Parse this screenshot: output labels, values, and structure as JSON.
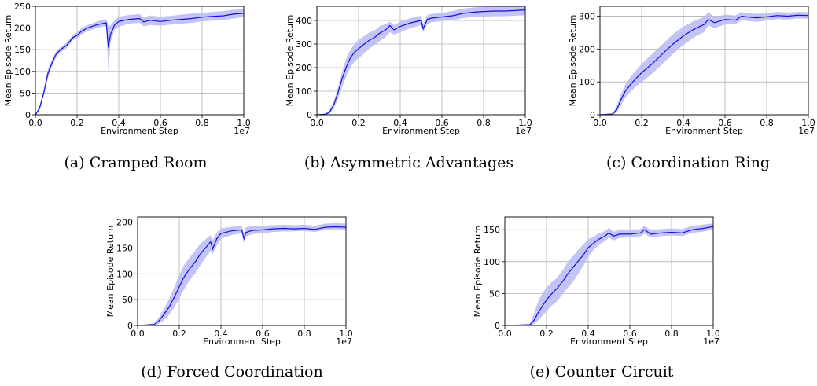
{
  "figure": {
    "captions": [
      "(a) Cramped Room",
      "(b) Asymmetric Advantages",
      "(c) Coordination Ring",
      "(d) Forced Coordination",
      "(e) Counter Circuit"
    ]
  },
  "colors": {
    "line": "#1010e0",
    "band": "#b8b8f5"
  },
  "chart_data": [
    {
      "type": "line",
      "xlabel": "Environment Step",
      "ylabel": "Mean Episode Return",
      "x_offset_label": "1e7",
      "xlim": [
        0,
        1.0
      ],
      "ylim": [
        0,
        250
      ],
      "xticks": [
        0.0,
        0.2,
        0.4,
        0.6,
        0.8,
        1.0
      ],
      "xtick_labels": [
        "0.0",
        "0.2",
        "0.4",
        "0.6",
        "0.8",
        "1.0"
      ],
      "yticks": [
        0,
        50,
        100,
        150,
        200,
        250
      ],
      "ytick_labels": [
        "0",
        "50",
        "100",
        "150",
        "200",
        "250"
      ],
      "series": [
        {
          "x": [
            0,
            0.02,
            0.04,
            0.06,
            0.08,
            0.1,
            0.12,
            0.15,
            0.18,
            0.2,
            0.22,
            0.25,
            0.28,
            0.3,
            0.32,
            0.34,
            0.35,
            0.36,
            0.38,
            0.4,
            0.45,
            0.5,
            0.52,
            0.55,
            0.6,
            0.65,
            0.7,
            0.75,
            0.8,
            0.85,
            0.9,
            0.95,
            1.0
          ],
          "y": [
            0,
            15,
            50,
            95,
            120,
            140,
            150,
            160,
            178,
            183,
            192,
            200,
            205,
            208,
            210,
            212,
            155,
            185,
            207,
            215,
            220,
            222,
            214,
            218,
            215,
            218,
            220,
            222,
            225,
            227,
            228,
            232,
            234
          ],
          "lower": [
            0,
            10,
            42,
            85,
            112,
            133,
            144,
            154,
            172,
            176,
            185,
            193,
            198,
            200,
            203,
            204,
            100,
            165,
            196,
            203,
            210,
            212,
            204,
            207,
            205,
            208,
            210,
            212,
            215,
            217,
            218,
            222,
            225
          ],
          "upper": [
            0,
            20,
            58,
            105,
            128,
            147,
            156,
            166,
            184,
            190,
            199,
            207,
            212,
            216,
            218,
            220,
            205,
            205,
            218,
            226,
            230,
            232,
            224,
            229,
            226,
            228,
            231,
            233,
            235,
            237,
            239,
            242,
            243
          ]
        }
      ]
    },
    {
      "type": "line",
      "xlabel": "Environment Step",
      "ylabel": "Mean Episode Return",
      "x_offset_label": "1e7",
      "xlim": [
        0,
        1.0
      ],
      "ylim": [
        0,
        460
      ],
      "xticks": [
        0.0,
        0.2,
        0.4,
        0.6,
        0.8,
        1.0
      ],
      "xtick_labels": [
        "0.0",
        "0.2",
        "0.4",
        "0.6",
        "0.8",
        "1.0"
      ],
      "yticks": [
        0,
        100,
        200,
        300,
        400
      ],
      "ytick_labels": [
        "0",
        "100",
        "200",
        "300",
        "400"
      ],
      "series": [
        {
          "x": [
            0,
            0.04,
            0.06,
            0.08,
            0.1,
            0.12,
            0.14,
            0.16,
            0.18,
            0.2,
            0.22,
            0.25,
            0.28,
            0.3,
            0.33,
            0.35,
            0.37,
            0.4,
            0.45,
            0.5,
            0.51,
            0.53,
            0.55,
            0.6,
            0.65,
            0.7,
            0.75,
            0.8,
            0.85,
            0.9,
            0.95,
            1.0
          ],
          "y": [
            0,
            2,
            10,
            40,
            90,
            150,
            200,
            240,
            265,
            280,
            295,
            315,
            330,
            345,
            360,
            378,
            360,
            375,
            390,
            400,
            365,
            405,
            410,
            415,
            420,
            430,
            435,
            438,
            440,
            440,
            442,
            445
          ],
          "lower": [
            0,
            0,
            4,
            25,
            65,
            115,
            160,
            200,
            225,
            240,
            255,
            280,
            298,
            312,
            330,
            350,
            340,
            350,
            368,
            380,
            350,
            385,
            392,
            398,
            400,
            410,
            415,
            416,
            418,
            418,
            420,
            422
          ],
          "upper": [
            0,
            4,
            18,
            55,
            115,
            180,
            235,
            275,
            300,
            318,
            330,
            348,
            360,
            375,
            385,
            395,
            380,
            395,
            410,
            420,
            385,
            423,
            428,
            432,
            440,
            450,
            455,
            458,
            460,
            460,
            462,
            463
          ]
        }
      ]
    },
    {
      "type": "line",
      "xlabel": "Environment Step",
      "ylabel": "Mean Episode Return",
      "x_offset_label": "1e7",
      "xlim": [
        0,
        1.0
      ],
      "ylim": [
        0,
        330
      ],
      "xticks": [
        0.0,
        0.2,
        0.4,
        0.6,
        0.8,
        1.0
      ],
      "xtick_labels": [
        "0.0",
        "0.2",
        "0.4",
        "0.6",
        "0.8",
        "1.0"
      ],
      "yticks": [
        0,
        100,
        200,
        300
      ],
      "ytick_labels": [
        "0",
        "100",
        "200",
        "300"
      ],
      "series": [
        {
          "x": [
            0,
            0.06,
            0.08,
            0.1,
            0.12,
            0.15,
            0.18,
            0.2,
            0.25,
            0.3,
            0.35,
            0.4,
            0.45,
            0.5,
            0.52,
            0.55,
            0.6,
            0.65,
            0.68,
            0.7,
            0.75,
            0.8,
            0.85,
            0.9,
            0.95,
            1.0
          ],
          "y": [
            0,
            2,
            15,
            45,
            70,
            95,
            115,
            128,
            155,
            185,
            215,
            240,
            260,
            275,
            290,
            280,
            290,
            288,
            300,
            298,
            295,
            298,
            302,
            300,
            303,
            302
          ],
          "lower": [
            0,
            0,
            5,
            28,
            50,
            72,
            90,
            100,
            125,
            155,
            185,
            212,
            235,
            252,
            272,
            263,
            275,
            275,
            288,
            286,
            283,
            287,
            291,
            290,
            293,
            292
          ],
          "upper": [
            0,
            5,
            25,
            62,
            90,
            118,
            140,
            155,
            185,
            215,
            245,
            268,
            285,
            298,
            312,
            297,
            305,
            302,
            313,
            310,
            307,
            309,
            313,
            311,
            313,
            312
          ]
        }
      ]
    },
    {
      "type": "line",
      "xlabel": "Environment Step",
      "ylabel": "Mean Episode Return",
      "x_offset_label": "1e7",
      "xlim": [
        0,
        1.0
      ],
      "ylim": [
        0,
        210
      ],
      "xticks": [
        0.0,
        0.2,
        0.4,
        0.6,
        0.8,
        1.0
      ],
      "xtick_labels": [
        "0.0",
        "0.2",
        "0.4",
        "0.6",
        "0.8",
        "1.0"
      ],
      "yticks": [
        0,
        50,
        100,
        150,
        200
      ],
      "ytick_labels": [
        "0",
        "50",
        "100",
        "150",
        "200"
      ],
      "series": [
        {
          "x": [
            0,
            0.08,
            0.1,
            0.12,
            0.15,
            0.18,
            0.2,
            0.22,
            0.25,
            0.28,
            0.3,
            0.33,
            0.35,
            0.36,
            0.38,
            0.4,
            0.45,
            0.5,
            0.51,
            0.52,
            0.55,
            0.6,
            0.65,
            0.7,
            0.75,
            0.8,
            0.85,
            0.9,
            0.95,
            1.0
          ],
          "y": [
            0,
            2,
            8,
            18,
            35,
            58,
            75,
            92,
            110,
            125,
            138,
            152,
            162,
            148,
            168,
            178,
            183,
            185,
            168,
            180,
            184,
            185,
            187,
            188,
            187,
            188,
            186,
            190,
            191,
            190
          ],
          "lower": [
            0,
            0,
            3,
            8,
            20,
            38,
            52,
            68,
            88,
            103,
            116,
            133,
            145,
            138,
            155,
            168,
            175,
            178,
            160,
            172,
            177,
            178,
            181,
            182,
            182,
            183,
            181,
            185,
            186,
            185
          ],
          "upper": [
            0,
            4,
            14,
            28,
            50,
            78,
            98,
            115,
            132,
            147,
            158,
            168,
            175,
            165,
            180,
            188,
            191,
            192,
            178,
            190,
            192,
            193,
            194,
            195,
            194,
            195,
            193,
            197,
            198,
            197
          ]
        }
      ]
    },
    {
      "type": "line",
      "xlabel": "Environment Step",
      "ylabel": "Mean Episode Return",
      "x_offset_label": "1e7",
      "xlim": [
        0,
        1.0
      ],
      "ylim": [
        0,
        170
      ],
      "xticks": [
        0.0,
        0.2,
        0.4,
        0.6,
        0.8,
        1.0
      ],
      "xtick_labels": [
        "0.0",
        "0.2",
        "0.4",
        "0.6",
        "0.8",
        "1.0"
      ],
      "yticks": [
        0,
        50,
        100,
        150
      ],
      "ytick_labels": [
        "0",
        "50",
        "100",
        "150"
      ],
      "series": [
        {
          "x": [
            0,
            0.12,
            0.14,
            0.16,
            0.18,
            0.2,
            0.22,
            0.25,
            0.28,
            0.3,
            0.33,
            0.35,
            0.38,
            0.4,
            0.43,
            0.45,
            0.48,
            0.5,
            0.52,
            0.55,
            0.6,
            0.65,
            0.67,
            0.7,
            0.75,
            0.8,
            0.85,
            0.9,
            0.95,
            1.0
          ],
          "y": [
            0,
            1,
            8,
            20,
            30,
            40,
            48,
            58,
            70,
            80,
            92,
            100,
            112,
            122,
            130,
            135,
            140,
            145,
            140,
            143,
            143,
            145,
            150,
            143,
            145,
            146,
            145,
            150,
            152,
            155
          ],
          "lower": [
            0,
            0,
            2,
            8,
            15,
            22,
            30,
            38,
            50,
            58,
            70,
            80,
            95,
            108,
            120,
            126,
            132,
            138,
            133,
            137,
            138,
            140,
            144,
            138,
            140,
            141,
            140,
            145,
            147,
            150
          ],
          "upper": [
            0,
            3,
            18,
            38,
            50,
            60,
            66,
            75,
            88,
            98,
            110,
            118,
            128,
            135,
            140,
            144,
            148,
            153,
            147,
            149,
            149,
            151,
            157,
            149,
            151,
            152,
            151,
            156,
            158,
            160
          ]
        }
      ]
    }
  ]
}
